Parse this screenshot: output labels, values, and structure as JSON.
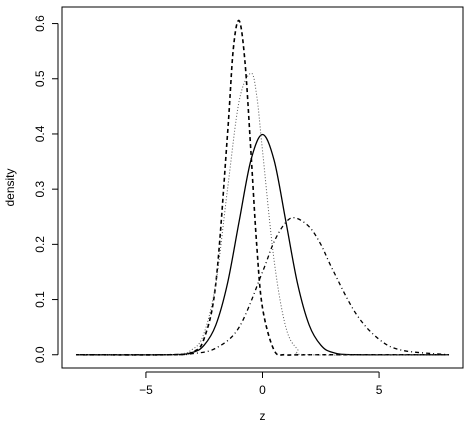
{
  "chart_data": {
    "type": "line",
    "xlabel": "z",
    "ylabel": "density",
    "xlim": [
      -8.6,
      8.6
    ],
    "ylim": [
      -0.024,
      0.63
    ],
    "xticks": [
      -5,
      0,
      5
    ],
    "yticks": [
      0.0,
      0.1,
      0.2,
      0.3,
      0.4,
      0.5,
      0.6
    ],
    "xtick_labels": [
      "−5",
      "0",
      "5"
    ],
    "ytick_labels": [
      "0.0",
      "0.1",
      "0.2",
      "0.3",
      "0.4",
      "0.5",
      "0.6"
    ],
    "x_range_plotted": [
      -8,
      8
    ],
    "grid": false,
    "legend": "none",
    "series": [
      {
        "style": "solid",
        "x": [
          -8,
          -4,
          -3,
          -2.5,
          -2,
          -1.5,
          -1,
          -0.5,
          0,
          0.5,
          1,
          1.5,
          2,
          2.5,
          3,
          4,
          8
        ],
        "y": [
          0.0,
          0.0001,
          0.0044,
          0.0175,
          0.054,
          0.1295,
          0.242,
          0.352,
          0.399,
          0.352,
          0.242,
          0.1295,
          0.054,
          0.0175,
          0.0044,
          0.0001,
          0.0
        ]
      },
      {
        "style": "dashed",
        "x": [
          -8,
          -4,
          -3,
          -2.5,
          -2,
          -1.5,
          -1.25,
          -1,
          -0.75,
          -0.5,
          -0.25,
          0,
          0.5,
          1,
          2,
          8
        ],
        "y": [
          0.0,
          0.0,
          0.005,
          0.03,
          0.13,
          0.4,
          0.555,
          0.605,
          0.53,
          0.37,
          0.2,
          0.085,
          0.008,
          0.0,
          0.0,
          0.0
        ]
      },
      {
        "style": "dotted",
        "x": [
          -8,
          -4,
          -3,
          -2.5,
          -2,
          -1.5,
          -1,
          -0.5,
          -0.25,
          0,
          0.5,
          1,
          1.5,
          2,
          8
        ],
        "y": [
          0.0,
          0.0,
          0.01,
          0.04,
          0.13,
          0.3,
          0.46,
          0.51,
          0.47,
          0.37,
          0.17,
          0.05,
          0.01,
          0.0,
          0.0
        ]
      },
      {
        "style": "dotdash",
        "x": [
          -8,
          -4,
          -3,
          -2,
          -1,
          0,
          0.5,
          1,
          1.4,
          2,
          2.5,
          3,
          4,
          5,
          6,
          8
        ],
        "y": [
          0.0,
          0.0,
          0.002,
          0.012,
          0.05,
          0.15,
          0.205,
          0.24,
          0.248,
          0.232,
          0.2,
          0.155,
          0.075,
          0.028,
          0.008,
          0.0
        ]
      }
    ]
  }
}
